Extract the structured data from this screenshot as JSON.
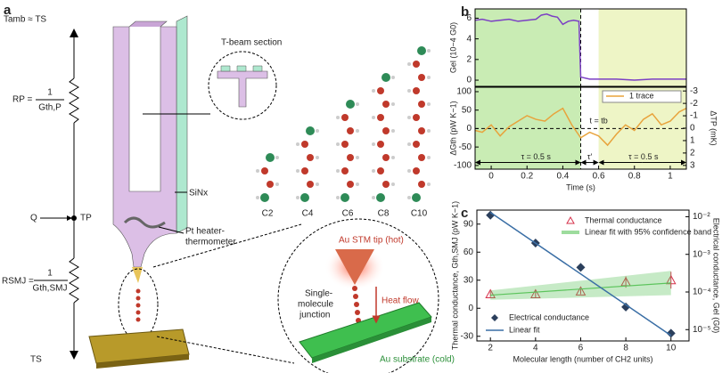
{
  "diagram": {
    "panel_label": "a",
    "t_top": "Tamb ≈ TS",
    "rp_label": "RP =",
    "rp_num": "1",
    "rp_den": "Gth,P",
    "q": "Q",
    "tp": "TP",
    "rsmj_label": "RSMJ =",
    "rsmj_num": "1",
    "rsmj_den": "Gth,SMJ",
    "t_bottom": "TS",
    "tbeam": "T-beam section",
    "sinx": "SiNx",
    "heater": [
      "Pt heater-",
      "thermometer"
    ],
    "molecules": [
      "C2",
      "C4",
      "C6",
      "C8",
      "C10"
    ],
    "tip": "Au STM tip (hot)",
    "junction": [
      "Single-",
      "molecule",
      "junction"
    ],
    "heat_flow": "Heat flow",
    "substrate": "Au substrate (cold)"
  },
  "chart_data": [
    {
      "type": "line",
      "panel_label": "b",
      "ylabel": "Gel (10−4 G0)",
      "xlim": [
        -0.09,
        1.09
      ],
      "ylim": [
        -0.6,
        6.9
      ],
      "yticks": [
        0,
        2,
        4,
        6
      ],
      "regions": [
        {
          "start": -0.09,
          "end": 0.5,
          "color": "#c9ecb4"
        },
        {
          "start": 0.6,
          "end": 1.09,
          "color": "#eef5c6"
        }
      ],
      "vlines": [
        0.5
      ],
      "series": [
        {
          "name": "Gel",
          "color": "#7b3fc4",
          "x": [
            -0.09,
            -0.05,
            0,
            0.05,
            0.1,
            0.15,
            0.2,
            0.25,
            0.28,
            0.31,
            0.34,
            0.37,
            0.4,
            0.43,
            0.46,
            0.49,
            0.5,
            0.55,
            0.6,
            0.7,
            0.8,
            0.9,
            1.0,
            1.09
          ],
          "values": [
            5.8,
            5.9,
            5.7,
            5.8,
            5.9,
            5.7,
            5.8,
            5.9,
            6.3,
            6.4,
            6.2,
            6.1,
            5.4,
            5.7,
            5.8,
            5.7,
            0.3,
            0.1,
            0.1,
            0.1,
            0.0,
            0.1,
            0.1,
            0.1
          ]
        }
      ]
    },
    {
      "type": "line",
      "ylabel": "ΔGth (pW K−1)",
      "y2label": "ΔTP (mK)",
      "xlabel": "Time (s)",
      "xlim": [
        -0.09,
        1.09
      ],
      "ylim": [
        -110,
        112
      ],
      "yticks": [
        -100,
        -50,
        0,
        50,
        100
      ],
      "y2lim": [
        3.3,
        -3.3
      ],
      "y2ticks": [
        -3,
        -2,
        -1,
        0,
        1,
        2,
        3
      ],
      "xticks": [
        0,
        0.2,
        0.4,
        0.6,
        0.8,
        1.0
      ],
      "regions": [
        {
          "start": -0.09,
          "end": 0.5,
          "color": "#c9ecb4"
        },
        {
          "start": 0.6,
          "end": 1.09,
          "color": "#eef5c6"
        }
      ],
      "vlines": [
        0.5
      ],
      "hlines": [
        0
      ],
      "legend": "upper right",
      "annotations": [
        {
          "text": "τ = 0.5 s",
          "x": 0.25,
          "y": -78
        },
        {
          "text": "t = tb",
          "x": 0.6,
          "y": 20
        },
        {
          "text": "τ′",
          "x": 0.55,
          "y": -78
        },
        {
          "text": "τ = 0.5 s",
          "x": 0.85,
          "y": -78
        }
      ],
      "series": [
        {
          "name": "1 trace",
          "color": "#e8a33c",
          "x": [
            -0.09,
            -0.05,
            0,
            0.05,
            0.1,
            0.15,
            0.2,
            0.25,
            0.3,
            0.35,
            0.4,
            0.45,
            0.5,
            0.55,
            0.6,
            0.65,
            0.7,
            0.75,
            0.8,
            0.85,
            0.9,
            0.95,
            1.0,
            1.05,
            1.09
          ],
          "values": [
            -5,
            -10,
            10,
            -20,
            5,
            20,
            35,
            25,
            20,
            40,
            55,
            10,
            -25,
            -10,
            -20,
            -45,
            -15,
            10,
            -5,
            25,
            40,
            10,
            20,
            45,
            55
          ]
        }
      ]
    },
    {
      "type": "scatter",
      "panel_label": "c",
      "ylabel": "Thermal conductance, Gth,SMJ (pW K−1)",
      "y2label": "Electrical conductance, Gel (G0)",
      "xlabel": "Molecular length (number of CH2 units)",
      "xlim": [
        1.4,
        10.8
      ],
      "xticks": [
        2,
        4,
        6,
        8,
        10
      ],
      "ylim": [
        -35,
        105
      ],
      "yticks": [
        -30,
        0,
        30,
        60,
        90
      ],
      "y2lim": [
        5e-06,
        0.015
      ],
      "y2log": true,
      "y2ticks": [
        {
          "value": 1e-05,
          "label": "10⁻⁵"
        },
        {
          "value": 0.0001,
          "label": "10⁻⁴"
        },
        {
          "value": 0.001,
          "label": "10⁻³"
        },
        {
          "value": 0.01,
          "label": "10⁻²"
        }
      ],
      "series": [
        {
          "name": "Thermal conductance",
          "type": "errorbar",
          "color": "#d6304a",
          "x": [
            2,
            4,
            6,
            8,
            10
          ],
          "values": [
            15,
            15,
            18,
            28,
            30
          ],
          "errors": [
            3,
            4,
            3,
            6,
            9
          ]
        },
        {
          "name": "Linear fit with 95% confidence band",
          "type": "band",
          "color": "#5cc45c",
          "x": [
            2,
            10
          ],
          "values": [
            14,
            27
          ],
          "lower": [
            9,
            14
          ],
          "upper": [
            19,
            40
          ]
        },
        {
          "name": "Electrical conductance",
          "type": "markers",
          "axis": "y2",
          "color": "#2b3f5c",
          "x": [
            2,
            4,
            6,
            8,
            10
          ],
          "values": [
            0.011,
            0.002,
            0.00045,
            4e-05,
            8e-06
          ]
        },
        {
          "name": "Linear fit",
          "type": "line",
          "axis": "y2",
          "color": "#3a6ea5",
          "x": [
            2,
            10
          ],
          "values": [
            0.013,
            7e-06
          ]
        }
      ]
    }
  ]
}
